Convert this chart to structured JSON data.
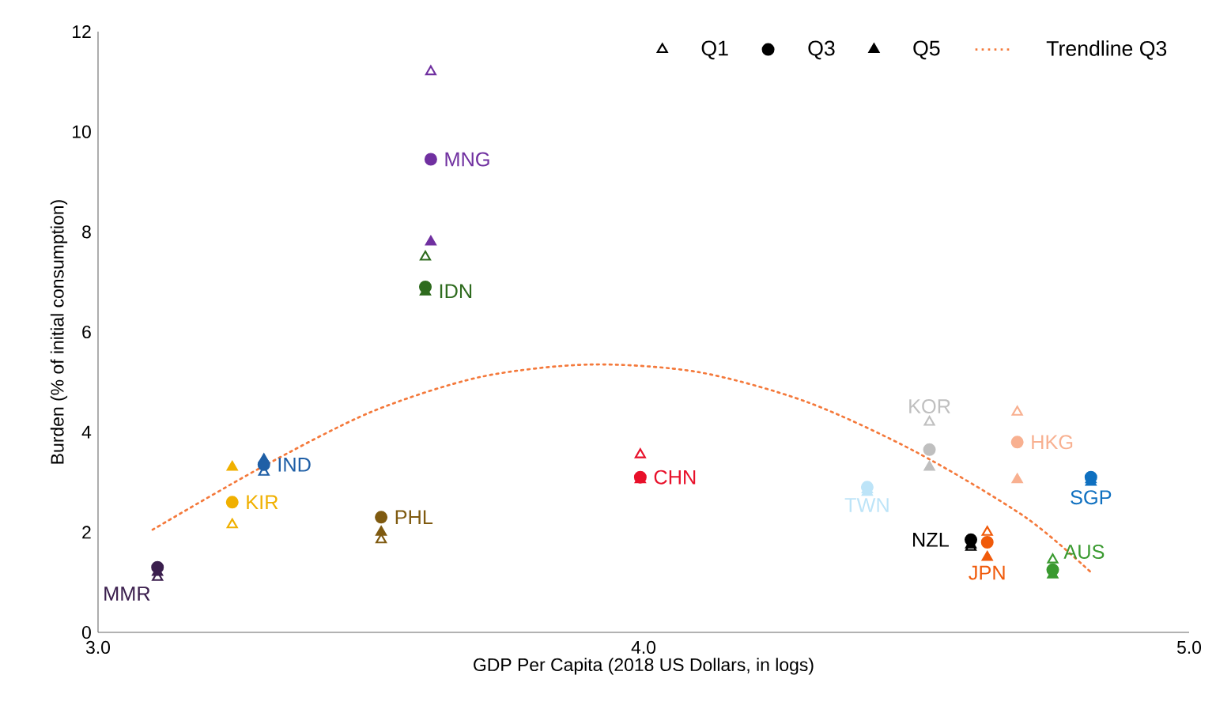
{
  "chart_data": {
    "type": "scatter",
    "xlabel": "GDP Per Capita (2018 US Dollars, in logs)",
    "ylabel": "Burden (% of initial consumption)",
    "xlim": [
      3.0,
      5.0
    ],
    "ylim": [
      0,
      12
    ],
    "xticks": [
      {
        "value": 3.0,
        "label": "3.0"
      },
      {
        "value": 4.0,
        "label": "4.0"
      },
      {
        "value": 5.0,
        "label": "5.0"
      }
    ],
    "yticks": [
      0,
      2,
      4,
      6,
      8,
      10,
      12
    ],
    "grid": false,
    "legend": "top right",
    "series": [
      {
        "name": "Q1",
        "type": "scatter",
        "marker": "triangle-open",
        "color": "#000000",
        "x": [
          3.109,
          3.246,
          3.304,
          3.519,
          3.61,
          3.6,
          3.994,
          4.41,
          4.524,
          4.6,
          4.63,
          4.685,
          4.82,
          4.75
        ],
        "values": [
          1.1,
          2.15,
          3.2,
          1.85,
          11.2,
          7.5,
          3.55,
          2.85,
          4.2,
          1.7,
          2.0,
          4.4,
          3.05,
          1.45
        ],
        "colors": [
          "#3b1f4e",
          "#f0b000",
          "#1f5fa6",
          "#7f5a10",
          "#7030a0",
          "#2e6b1e",
          "#e8102a",
          "#bde4f8",
          "#bfbfbf",
          "#000000",
          "#f05a0a",
          "#f8b090",
          "#0f70c0",
          "#3a9a30"
        ]
      },
      {
        "name": "Q3",
        "type": "scatter",
        "marker": "circle",
        "color": "#000000",
        "x": [
          3.109,
          3.246,
          3.304,
          3.519,
          3.61,
          3.6,
          3.994,
          4.41,
          4.524,
          4.6,
          4.63,
          4.685,
          4.82,
          4.75
        ],
        "values": [
          1.3,
          2.6,
          3.35,
          2.3,
          9.45,
          6.9,
          3.1,
          2.9,
          3.65,
          1.85,
          1.8,
          3.8,
          3.1,
          1.25
        ],
        "colors": [
          "#3b1f4e",
          "#f0b000",
          "#1f5fa6",
          "#7f5a10",
          "#7030a0",
          "#2e6b1e",
          "#e8102a",
          "#bde4f8",
          "#bfbfbf",
          "#000000",
          "#f05a0a",
          "#f8b090",
          "#0f70c0",
          "#3a9a30"
        ]
      },
      {
        "name": "Q5",
        "type": "scatter",
        "marker": "triangle",
        "color": "#000000",
        "x": [
          3.109,
          3.246,
          3.304,
          3.519,
          3.61,
          3.6,
          3.994,
          4.41,
          4.524,
          4.6,
          4.63,
          4.685,
          4.82,
          4.75
        ],
        "values": [
          1.2,
          3.3,
          3.45,
          2.0,
          7.8,
          6.8,
          3.05,
          2.8,
          3.3,
          1.75,
          1.5,
          3.05,
          3.0,
          1.15
        ],
        "colors": [
          "#3b1f4e",
          "#f0b000",
          "#1f5fa6",
          "#7f5a10",
          "#7030a0",
          "#2e6b1e",
          "#e8102a",
          "#bde4f8",
          "#bfbfbf",
          "#000000",
          "#f05a0a",
          "#f8b090",
          "#0f70c0",
          "#3a9a30"
        ]
      },
      {
        "name": "Trendline Q3",
        "type": "line",
        "line_style": "dotted",
        "color": "#f4793b",
        "x": [
          3.1,
          3.3,
          3.5,
          3.7,
          3.9,
          4.1,
          4.3,
          4.5,
          4.7,
          4.82
        ],
        "values": [
          2.05,
          3.3,
          4.4,
          5.1,
          5.35,
          5.2,
          4.6,
          3.6,
          2.3,
          1.2
        ]
      }
    ],
    "annotations": [
      {
        "text": "MMR",
        "x": 3.109,
        "y": 1.3
      },
      {
        "text": "KIR",
        "x": 3.246,
        "y": 2.6
      },
      {
        "text": "IND",
        "x": 3.304,
        "y": 3.35
      },
      {
        "text": "PHL",
        "x": 3.519,
        "y": 2.3
      },
      {
        "text": "MNG",
        "x": 3.61,
        "y": 9.45
      },
      {
        "text": "IDN",
        "x": 3.6,
        "y": 6.9
      },
      {
        "text": "CHN",
        "x": 3.994,
        "y": 3.1
      },
      {
        "text": "TWN",
        "x": 4.41,
        "y": 2.9
      },
      {
        "text": "KOR",
        "x": 4.524,
        "y": 3.65
      },
      {
        "text": "NZL",
        "x": 4.6,
        "y": 1.85
      },
      {
        "text": "JPN",
        "x": 4.63,
        "y": 1.8
      },
      {
        "text": "HKG",
        "x": 4.685,
        "y": 3.8
      },
      {
        "text": "SGP",
        "x": 4.82,
        "y": 3.1
      },
      {
        "text": "AUS",
        "x": 4.75,
        "y": 1.25
      }
    ]
  }
}
